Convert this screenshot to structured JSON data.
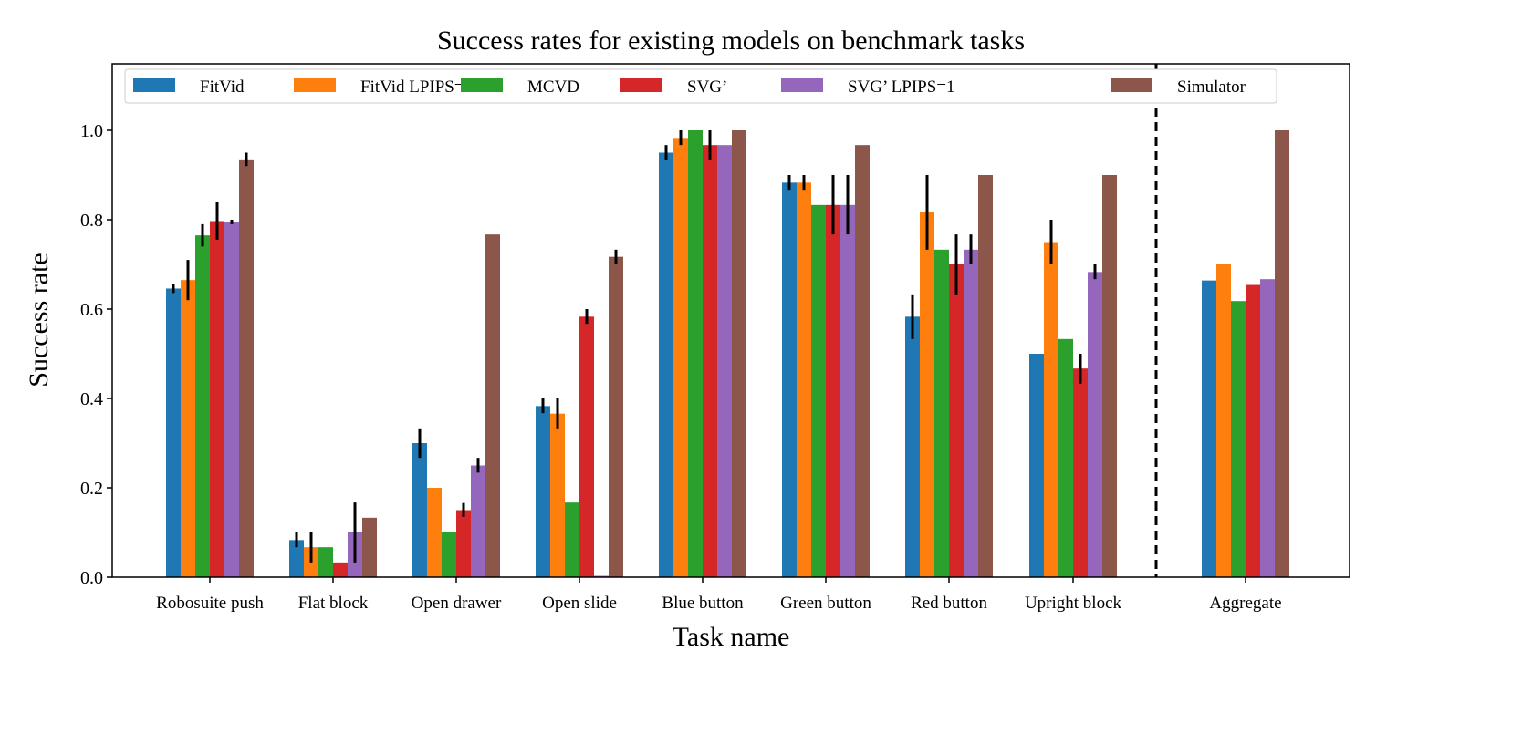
{
  "chart_data": {
    "type": "bar",
    "title": "Success rates for existing models on benchmark tasks",
    "xlabel": "Task name",
    "ylabel": "Success rate",
    "ylim": [
      0,
      1.15
    ],
    "yticks": [
      "0.0",
      "0.2",
      "0.4",
      "0.6",
      "0.8",
      "1.0"
    ],
    "grid": false,
    "legend_placement": "top",
    "categories": [
      "Robosuite push",
      "Flat block",
      "Open drawer",
      "Open slide",
      "Blue button",
      "Green button",
      "Red button",
      "Upright block",
      "Aggregate"
    ],
    "separator": "dashed vertical line before Aggregate",
    "series": [
      {
        "name": "FitVid",
        "color": "#1f77b4",
        "values": [
          0.646,
          0.083,
          0.3,
          0.383,
          0.95,
          0.883,
          0.583,
          0.5,
          0.664
        ],
        "err_low": [
          0.636,
          0.067,
          0.267,
          0.367,
          0.934,
          0.867,
          0.533,
          null,
          null
        ],
        "err_high": [
          0.656,
          0.1,
          0.333,
          0.4,
          0.967,
          0.9,
          0.633,
          null,
          null
        ]
      },
      {
        "name": "FitVid LPIPS=1",
        "color": "#ff7f0e",
        "values": [
          0.665,
          0.067,
          0.2,
          0.366,
          0.983,
          0.883,
          0.817,
          0.75,
          0.702
        ],
        "err_low": [
          0.62,
          0.033,
          null,
          0.333,
          0.967,
          0.867,
          0.733,
          0.7,
          null
        ],
        "err_high": [
          0.71,
          0.1,
          null,
          0.4,
          1.0,
          0.9,
          0.9,
          0.8,
          null
        ]
      },
      {
        "name": "MCVD",
        "color": "#2ca02c",
        "values": [
          0.765,
          0.067,
          0.1,
          0.167,
          1.0,
          0.833,
          0.733,
          0.533,
          0.618
        ],
        "err_low": [
          0.74,
          null,
          null,
          null,
          null,
          null,
          null,
          null,
          null
        ],
        "err_high": [
          0.79,
          null,
          null,
          null,
          null,
          null,
          null,
          null,
          null
        ]
      },
      {
        "name": "SVG’",
        "color": "#d62728",
        "values": [
          0.797,
          0.033,
          0.15,
          0.583,
          0.967,
          0.833,
          0.7,
          0.467,
          0.654
        ],
        "err_low": [
          0.755,
          null,
          0.135,
          0.567,
          0.934,
          0.767,
          0.633,
          0.433,
          null
        ],
        "err_high": [
          0.84,
          null,
          0.166,
          0.6,
          1.0,
          0.9,
          0.767,
          0.5,
          null
        ]
      },
      {
        "name": "SVG’ LPIPS=1",
        "color": "#9467bd",
        "values": [
          0.795,
          0.1,
          0.25,
          0.003,
          0.967,
          0.833,
          0.733,
          0.683,
          0.667
        ],
        "err_low": [
          0.79,
          0.033,
          0.234,
          null,
          null,
          0.767,
          0.7,
          0.667,
          null
        ],
        "err_high": [
          0.8,
          0.167,
          0.267,
          null,
          null,
          0.9,
          0.767,
          0.7,
          null
        ]
      },
      {
        "name": "Simulator",
        "color": "#8c564b",
        "values": [
          0.935,
          0.133,
          0.767,
          0.717,
          1.0,
          0.967,
          0.9,
          0.9,
          1.0
        ],
        "err_low": [
          0.92,
          null,
          null,
          0.7,
          null,
          null,
          null,
          null,
          null
        ],
        "err_high": [
          0.95,
          null,
          null,
          0.733,
          null,
          null,
          null,
          null,
          null
        ]
      }
    ]
  }
}
